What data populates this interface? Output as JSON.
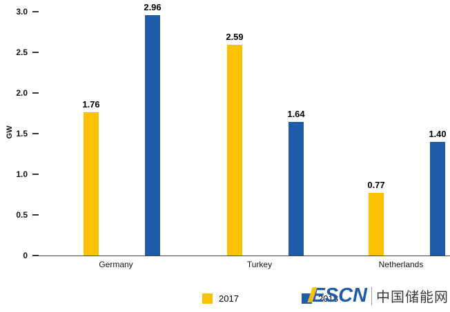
{
  "chart_data": {
    "type": "bar",
    "title": "",
    "xlabel": "",
    "ylabel": "GW",
    "ylim": [
      0,
      3.0
    ],
    "grid": false,
    "legend_position": "bottom",
    "categories": [
      "Germany",
      "Turkey",
      "Netherlands"
    ],
    "yticks": [
      "3.0",
      "2.5",
      "2.0",
      "1.5",
      "1.0",
      "0.5",
      "0"
    ],
    "ytick_values": [
      3.0,
      2.5,
      2.0,
      1.5,
      1.0,
      0.5,
      0
    ],
    "series": [
      {
        "name": "2017",
        "color": "#FCC305",
        "values": [
          1.76,
          2.59,
          0.77
        ],
        "labels": [
          "1.76",
          "2.59",
          "0.77"
        ]
      },
      {
        "name": "2018",
        "color": "#1E5BA8",
        "values": [
          2.96,
          1.64,
          1.4
        ],
        "labels": [
          "2.96",
          "1.64",
          "1.40"
        ]
      }
    ]
  },
  "legend": {
    "items": [
      {
        "label": "2017",
        "color": "#FCC305"
      },
      {
        "label": "2018",
        "color": "#1E5BA8"
      }
    ]
  },
  "watermark": {
    "brand": "ESCN",
    "name": "中国储能网",
    "brand_color": "#1E5BA8",
    "accent_color": "#FCC305"
  }
}
